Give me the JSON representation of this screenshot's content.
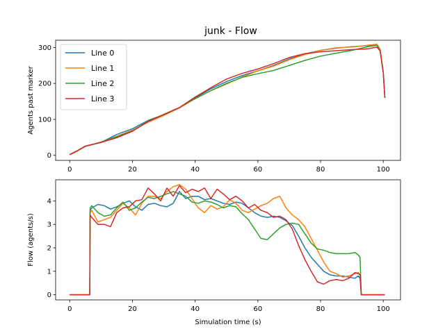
{
  "figure": {
    "title": "junk - Flow"
  },
  "chart_data": [
    {
      "type": "line",
      "title": "junk - Flow",
      "xlabel": "",
      "ylabel": "Agents past marker",
      "xlim": [
        -4.5,
        105.5
      ],
      "ylim": [
        -14,
        320
      ],
      "xticks": [
        0,
        20,
        40,
        60,
        80,
        100
      ],
      "yticks": [
        0,
        100,
        200,
        300
      ],
      "grid": false,
      "legend": "top-left",
      "series": [
        {
          "name": "Line 0",
          "color": "#1f77b4",
          "x": [
            0,
            2,
            5,
            10,
            15,
            20,
            25,
            30,
            35,
            40,
            45,
            50,
            55,
            60,
            65,
            70,
            75,
            80,
            85,
            90,
            95,
            98,
            99,
            100,
            100.5
          ],
          "y": [
            2,
            10,
            25,
            36,
            58,
            74,
            97,
            113,
            132,
            160,
            185,
            205,
            222,
            235,
            250,
            268,
            282,
            292,
            298,
            302,
            305,
            307,
            295,
            230,
            160
          ]
        },
        {
          "name": "Line 1",
          "color": "#ff7f0e",
          "x": [
            0,
            2,
            5,
            10,
            15,
            20,
            25,
            30,
            35,
            40,
            45,
            50,
            55,
            60,
            65,
            70,
            75,
            80,
            85,
            90,
            95,
            98,
            99,
            100,
            100.5
          ],
          "y": [
            2,
            10,
            25,
            36,
            53,
            70,
            92,
            111,
            132,
            157,
            180,
            198,
            218,
            235,
            248,
            266,
            280,
            292,
            299,
            301,
            306,
            309,
            295,
            230,
            160
          ]
        },
        {
          "name": "Line 2",
          "color": "#2ca02c",
          "x": [
            0,
            2,
            5,
            10,
            15,
            20,
            25,
            30,
            35,
            40,
            45,
            50,
            55,
            60,
            65,
            70,
            75,
            80,
            85,
            90,
            95,
            98,
            99,
            100,
            100.5
          ],
          "y": [
            2,
            11,
            25,
            37,
            52,
            68,
            95,
            113,
            133,
            158,
            180,
            200,
            217,
            227,
            236,
            250,
            264,
            276,
            284,
            292,
            302,
            306,
            290,
            230,
            160
          ]
        },
        {
          "name": "Line 3",
          "color": "#d62728",
          "x": [
            0,
            2,
            5,
            10,
            15,
            20,
            25,
            30,
            35,
            40,
            45,
            50,
            55,
            60,
            65,
            70,
            75,
            80,
            85,
            90,
            95,
            98,
            99,
            100,
            100.5
          ],
          "y": [
            2,
            11,
            26,
            36,
            49,
            67,
            94,
            114,
            133,
            162,
            188,
            212,
            228,
            240,
            255,
            272,
            283,
            288,
            291,
            294,
            296,
            301,
            290,
            230,
            160
          ]
        }
      ]
    },
    {
      "type": "line",
      "title": "",
      "xlabel": "Simulation time (s)",
      "ylabel": "Flow (agents/s)",
      "xlim": [
        -4.5,
        105.5
      ],
      "ylim": [
        -0.22,
        4.9
      ],
      "xticks": [
        0,
        20,
        40,
        60,
        80,
        100
      ],
      "yticks": [
        0,
        1,
        2,
        3,
        4
      ],
      "grid": false,
      "legend": "none",
      "series": [
        {
          "name": "",
          "color": "#1f77b4",
          "x": [
            0,
            6.4,
            6.5,
            7,
            9,
            11,
            13,
            15,
            17,
            19,
            21,
            23,
            25,
            27,
            29,
            31,
            33,
            35,
            37,
            39,
            41,
            43,
            45,
            47,
            49,
            51,
            53,
            55,
            57,
            59,
            61,
            63,
            65,
            67,
            69,
            71,
            73,
            75,
            77,
            79,
            81,
            83,
            85,
            87,
            89,
            91,
            92,
            92.6,
            93,
            100.5
          ],
          "y": [
            0,
            0,
            3.6,
            3.7,
            3.85,
            3.8,
            3.65,
            3.75,
            3.9,
            4.0,
            3.75,
            3.6,
            3.85,
            3.9,
            3.8,
            3.75,
            3.9,
            4.4,
            4.1,
            4.2,
            4.2,
            4.05,
            4.1,
            4.0,
            3.9,
            3.85,
            3.95,
            3.9,
            3.7,
            3.5,
            3.35,
            3.3,
            3.35,
            3.3,
            3.15,
            2.95,
            2.5,
            2.0,
            1.6,
            1.3,
            1.0,
            0.85,
            0.8,
            0.8,
            0.75,
            0.7,
            0.8,
            0.7,
            0,
            0
          ]
        },
        {
          "name": "",
          "color": "#ff7f0e",
          "x": [
            0,
            6.4,
            6.5,
            7,
            9,
            11,
            13,
            15,
            17,
            19,
            21,
            23,
            25,
            27,
            29,
            31,
            33,
            35,
            37,
            39,
            41,
            43,
            45,
            47,
            49,
            51,
            53,
            55,
            57,
            59,
            61,
            63,
            65,
            67,
            69,
            71,
            73,
            75,
            77,
            79,
            81,
            83,
            85,
            87,
            89,
            91,
            92,
            92.6,
            93,
            100.5
          ],
          "y": [
            0,
            0,
            3.5,
            3.6,
            3.1,
            3.2,
            3.3,
            3.6,
            3.9,
            3.7,
            3.4,
            3.9,
            4.2,
            4.2,
            4.1,
            4.4,
            4.6,
            4.7,
            4.5,
            4.1,
            3.7,
            3.5,
            3.8,
            3.65,
            3.75,
            4.05,
            3.9,
            3.6,
            3.5,
            3.65,
            3.8,
            3.9,
            4.1,
            4.2,
            3.7,
            3.4,
            3.2,
            2.9,
            2.4,
            1.9,
            1.4,
            1.0,
            0.9,
            0.75,
            0.8,
            0.9,
            0.95,
            0.85,
            0,
            0
          ]
        },
        {
          "name": "",
          "color": "#2ca02c",
          "x": [
            0,
            6.4,
            6.5,
            7,
            9,
            11,
            13,
            15,
            17,
            19,
            21,
            23,
            25,
            27,
            29,
            31,
            33,
            35,
            37,
            39,
            41,
            43,
            45,
            47,
            49,
            51,
            53,
            55,
            57,
            59,
            61,
            63,
            65,
            67,
            69,
            71,
            73,
            75,
            77,
            79,
            81,
            83,
            85,
            87,
            89,
            91,
            92,
            92.6,
            93,
            100.5
          ],
          "y": [
            0,
            0,
            3.7,
            3.8,
            3.5,
            3.35,
            3.4,
            3.7,
            3.95,
            3.6,
            3.7,
            3.95,
            4.15,
            4.1,
            4.2,
            4.3,
            4.4,
            4.3,
            4.2,
            3.95,
            3.9,
            4.0,
            3.95,
            3.85,
            3.7,
            3.8,
            3.75,
            3.45,
            3.2,
            2.8,
            2.4,
            2.35,
            2.6,
            2.85,
            3.0,
            3.05,
            3.0,
            2.6,
            2.2,
            1.95,
            1.9,
            1.8,
            1.75,
            1.75,
            1.75,
            1.8,
            1.7,
            1.6,
            0,
            0
          ]
        },
        {
          "name": "",
          "color": "#d62728",
          "x": [
            0,
            6.4,
            6.5,
            7,
            9,
            11,
            13,
            15,
            17,
            19,
            21,
            23,
            25,
            27,
            29,
            31,
            33,
            35,
            37,
            39,
            41,
            43,
            45,
            47,
            49,
            51,
            53,
            55,
            57,
            59,
            61,
            63,
            65,
            67,
            69,
            71,
            73,
            75,
            77,
            79,
            81,
            83,
            85,
            87,
            89,
            91,
            92,
            92.6,
            93,
            100.5
          ],
          "y": [
            0,
            0,
            3.4,
            3.3,
            3.0,
            3.0,
            2.9,
            3.5,
            3.7,
            3.75,
            4.0,
            4.05,
            4.55,
            4.3,
            4.0,
            4.55,
            4.2,
            4.65,
            4.35,
            4.5,
            4.4,
            4.55,
            4.1,
            4.5,
            4.3,
            4.05,
            4.2,
            4.0,
            3.7,
            3.85,
            3.6,
            3.5,
            3.3,
            3.35,
            3.2,
            2.8,
            2.1,
            1.5,
            1.0,
            0.55,
            0.45,
            0.6,
            0.65,
            0.6,
            0.7,
            0.95,
            0.9,
            0.85,
            0,
            0
          ]
        }
      ]
    }
  ]
}
